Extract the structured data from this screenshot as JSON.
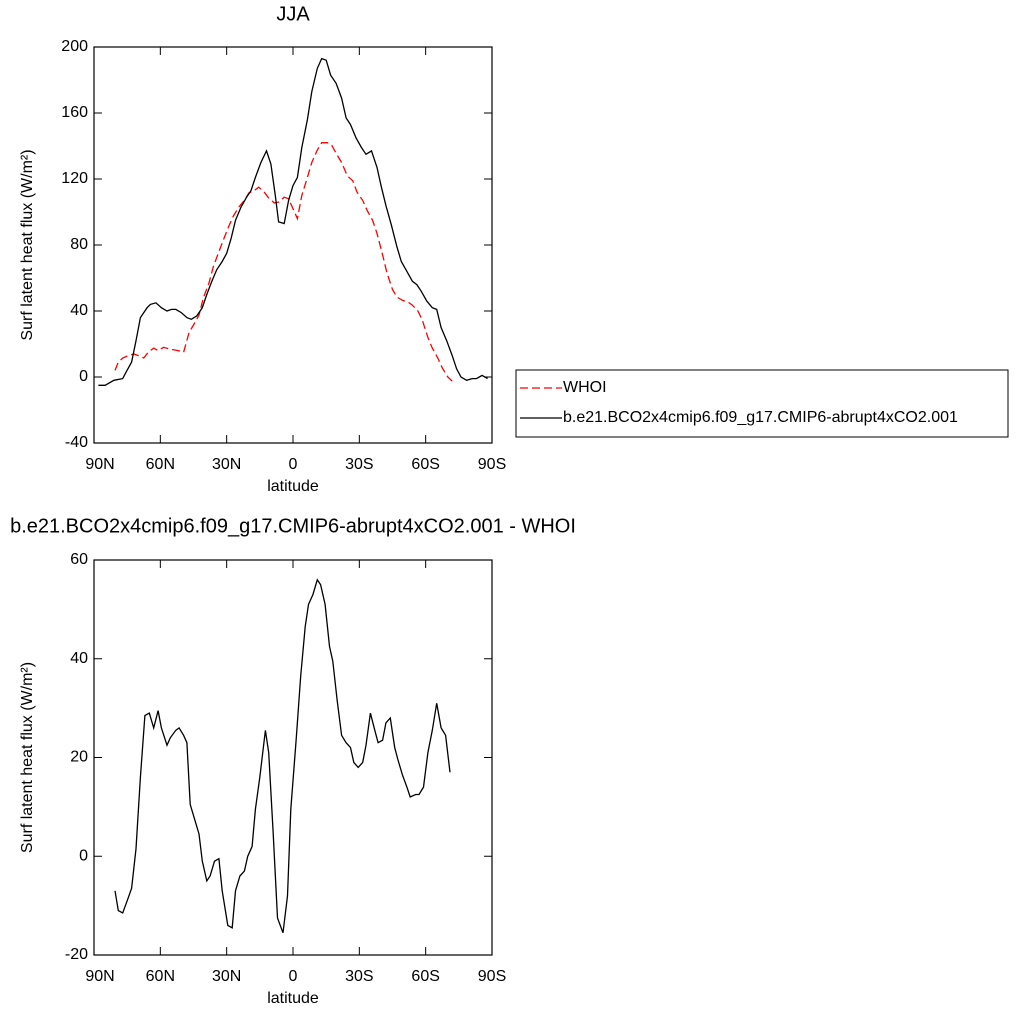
{
  "chart_data": [
    {
      "type": "line",
      "title": "JJA",
      "x_label": "latitude",
      "y_label": "Surf latent heat flux (W/m²)",
      "xlim": [
        90,
        -90
      ],
      "xticks": [
        {
          "value": 90,
          "label": "90N"
        },
        {
          "value": 60,
          "label": "60N"
        },
        {
          "value": 30,
          "label": "30N"
        },
        0,
        {
          "value": -30,
          "label": "30S"
        },
        {
          "value": -60,
          "label": "60S"
        },
        {
          "value": -90,
          "label": "90S"
        }
      ],
      "ylim": [
        -40,
        200
      ],
      "yticks": [
        -40,
        0,
        40,
        80,
        120,
        160,
        200
      ],
      "legend": "right",
      "series": [
        {
          "name": "WHOI",
          "color": "#ff0000",
          "dashed": true,
          "x": [
            80.5,
            79,
            77,
            74.5,
            72,
            70,
            67.5,
            65.5,
            63,
            61,
            58.5,
            56,
            54,
            52,
            49.5,
            47,
            45,
            42.5,
            40.5,
            38,
            36,
            33.5,
            31.5,
            29,
            27,
            24.5,
            22,
            20,
            17.5,
            15.5,
            13,
            11,
            8.5,
            6.5,
            4,
            2,
            0,
            -2,
            -4,
            -6.5,
            -8.5,
            -11,
            -13,
            -15.5,
            -17.5,
            -20,
            -22,
            -24.5,
            -27,
            -29,
            -31.5,
            -33.5,
            -36,
            -38,
            -40.5,
            -42.5,
            -45,
            -47,
            -49.5,
            -52,
            -54,
            -56.5,
            -58.5,
            -61,
            -63,
            -65.5,
            -67.5,
            -70,
            -72
          ],
          "values": [
            4,
            9,
            11.5,
            13,
            14,
            13,
            11.5,
            15,
            17.5,
            16,
            18,
            17,
            16.5,
            16,
            15,
            27,
            31.5,
            37.5,
            48,
            57,
            67,
            76,
            83,
            91.5,
            97.5,
            103,
            107,
            111.5,
            113,
            115,
            112,
            108.5,
            105.5,
            106,
            109,
            108,
            102,
            96,
            110,
            121,
            130,
            137.5,
            142,
            142,
            140.5,
            134.5,
            130,
            122,
            119,
            112,
            107,
            101,
            95,
            87,
            74,
            63,
            53,
            48.5,
            46.5,
            45.5,
            43.5,
            40,
            34.5,
            24,
            17.5,
            11.5,
            5.5,
            0,
            -2.5
          ]
        },
        {
          "name": "b.e21.BCO2x4cmip6.f09_g17.CMIP6-abrupt4xCO2.001",
          "color": "#000000",
          "dashed": false,
          "x": [
            88,
            85,
            81,
            77,
            75.5,
            73,
            71,
            69,
            66,
            64.5,
            62,
            59.5,
            57,
            55,
            53,
            50.5,
            48,
            46,
            43.5,
            41,
            39,
            37,
            34.5,
            32,
            30,
            28,
            26,
            23.5,
            21,
            19,
            17,
            14.5,
            12,
            10,
            8,
            6.5,
            4,
            2,
            0,
            -2,
            -4,
            -6.5,
            -8.5,
            -11,
            -13,
            -15,
            -17,
            -19.5,
            -22,
            -24,
            -26,
            -28.5,
            -31,
            -33,
            -35.5,
            -38,
            -40,
            -42,
            -44.5,
            -47,
            -49,
            -51.5,
            -54,
            -56,
            -58,
            -60.5,
            -63,
            -65,
            -67,
            -69.5,
            -72,
            -74,
            -76,
            -78.5,
            -81,
            -83,
            -85.5,
            -88
          ],
          "values": [
            -5,
            -5,
            -2,
            -1,
            3,
            9,
            22,
            36,
            42,
            44,
            45,
            42,
            40,
            41,
            41,
            39,
            36,
            35,
            37,
            42,
            50,
            57,
            65,
            70,
            75,
            84,
            95,
            103,
            109,
            113,
            121,
            130,
            137,
            129,
            110,
            94,
            93,
            107,
            116,
            121,
            139,
            156,
            173,
            187,
            193,
            192,
            183,
            178,
            169,
            157,
            153,
            145,
            139,
            135,
            137,
            127,
            115,
            104,
            92,
            79,
            70,
            64,
            58,
            56,
            52,
            46,
            42,
            41,
            30,
            22,
            13,
            5,
            0,
            -2,
            -1,
            -1,
            1,
            -1
          ]
        }
      ]
    },
    {
      "type": "line",
      "title": "b.e21.BCO2x4cmip6.f09_g17.CMIP6-abrupt4xCO2.001 - WHOI",
      "x_label": "latitude",
      "y_label": "Surf latent heat flux (W/m²)",
      "xlim": [
        90,
        -90
      ],
      "xticks": [
        {
          "value": 90,
          "label": "90N"
        },
        {
          "value": 60,
          "label": "60N"
        },
        {
          "value": 30,
          "label": "30N"
        },
        0,
        {
          "value": -30,
          "label": "30S"
        },
        {
          "value": -60,
          "label": "60S"
        },
        {
          "value": -90,
          "label": "90S"
        }
      ],
      "ylim": [
        -20,
        60
      ],
      "yticks": [
        -20,
        0,
        20,
        40,
        60
      ],
      "series": [
        {
          "color": "#000000",
          "dashed": false,
          "x": [
            80.5,
            79,
            77,
            75,
            73,
            71,
            69,
            67,
            65,
            63,
            61,
            59.5,
            57,
            55.5,
            53,
            51.5,
            49.5,
            48,
            46.5,
            44.5,
            42.5,
            41,
            39,
            37.5,
            35.5,
            33.5,
            32,
            29.5,
            27.5,
            26,
            24,
            22,
            20.5,
            18.5,
            17,
            15,
            12.5,
            11,
            9,
            7,
            4.5,
            2.5,
            1,
            -1.5,
            -3.5,
            -5.5,
            -7,
            -9,
            -11,
            -12.5,
            -14.5,
            -16.5,
            -18,
            -20,
            -22,
            -24,
            -26,
            -27.5,
            -29.5,
            -31.5,
            -33,
            -35,
            -37,
            -38.5,
            -40.5,
            -42,
            -44,
            -46,
            -47.5,
            -49.5,
            -51.5,
            -53,
            -55.5,
            -57,
            -59,
            -61,
            -63,
            -65,
            -67,
            -69,
            -71
          ],
          "values": [
            -7,
            -11,
            -11.5,
            -9,
            -6.5,
            1.5,
            16,
            28.5,
            29,
            26,
            29.5,
            26,
            22.5,
            24,
            25.5,
            26,
            24.5,
            23,
            10.5,
            7.5,
            4.5,
            -1,
            -5,
            -4,
            -1,
            -0.5,
            -7,
            -14,
            -14.5,
            -7,
            -4,
            -3,
            0,
            2,
            9.5,
            16,
            25.5,
            21,
            5,
            -12.5,
            -15.5,
            -8,
            9.5,
            24,
            36.5,
            46.5,
            51,
            53,
            56,
            55,
            51,
            42.5,
            39.5,
            31.5,
            24.5,
            23,
            22,
            19,
            18,
            19,
            22.5,
            29,
            25.5,
            23,
            23.5,
            27,
            28,
            22,
            19.5,
            16.5,
            14,
            12,
            12.5,
            12.5,
            14,
            21,
            25.5,
            31,
            26,
            24.5,
            17
          ]
        }
      ]
    }
  ]
}
